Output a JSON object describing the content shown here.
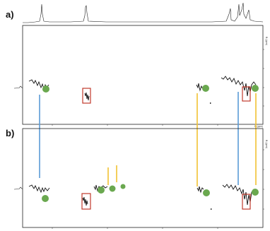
{
  "figure": {
    "panel_a_label": "a)",
    "panel_b_label": "b)",
    "axis_unit_label": "f1 (ppm)",
    "f2_axis_label": "f2 (ppm)",
    "colors": {
      "marker_green": "#6aa84f",
      "box_red": "#c0392b",
      "link_blue": "#5b9bd5",
      "link_orange": "#f1c232",
      "trace": "#222222"
    }
  }
}
